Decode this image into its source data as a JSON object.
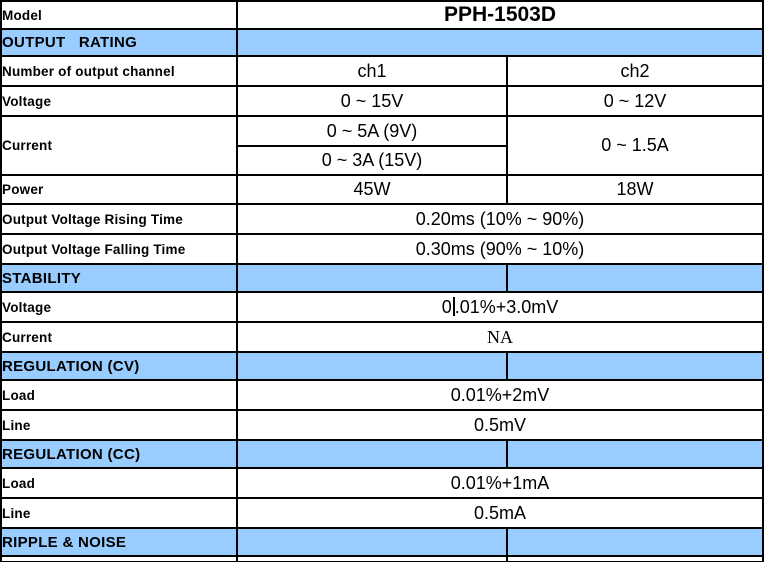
{
  "colors": {
    "section_header_bg": "#99CCFF",
    "border": "#000000",
    "text": "#000000"
  },
  "table": {
    "model": {
      "label": "Model",
      "value": "PPH-1503D"
    },
    "sections": {
      "output_rating": "OUTPUT   RATING",
      "stability": "STABILITY",
      "regulation_cv": "REGULATION (CV)",
      "regulation_cc": "REGULATION (CC)",
      "ripple_noise": "RIPPLE & NOISE"
    },
    "output_rating_rows": {
      "channels": {
        "label": "Number of output channel",
        "ch1": "ch1",
        "ch2": "ch2"
      },
      "voltage": {
        "label": "Voltage",
        "ch1": "0 ~ 15V",
        "ch2": "0 ~ 12V"
      },
      "current": {
        "label": "Current",
        "ch1_range_9v": "0 ~ 5A (9V)",
        "ch1_range_15v": "0 ~ 3A (15V)",
        "ch2": "0 ~ 1.5A"
      },
      "power": {
        "label": "Power",
        "ch1": "45W",
        "ch2": "18W"
      },
      "rising_time": {
        "label": "Output Voltage Rising Time",
        "value": "0.20ms (10% ~ 90%)"
      },
      "falling_time": {
        "label": "Output Voltage Falling Time",
        "value": "0.30ms (90% ~ 10%)"
      }
    },
    "stability_rows": {
      "voltage": {
        "label": "Voltage",
        "value_before_caret": "0",
        "value_after_caret": ".01%+3.0mV"
      },
      "current": {
        "label": "Current",
        "value": "NA"
      }
    },
    "regulation_cv_rows": {
      "load": {
        "label": "Load",
        "value": "0.01%+2mV"
      },
      "line": {
        "label": "Line",
        "value": "0.5mV"
      }
    },
    "regulation_cc_rows": {
      "load": {
        "label": "Load",
        "value": "0.01%+1mA"
      },
      "line": {
        "label": "Line",
        "value": "0.5mA"
      }
    }
  }
}
